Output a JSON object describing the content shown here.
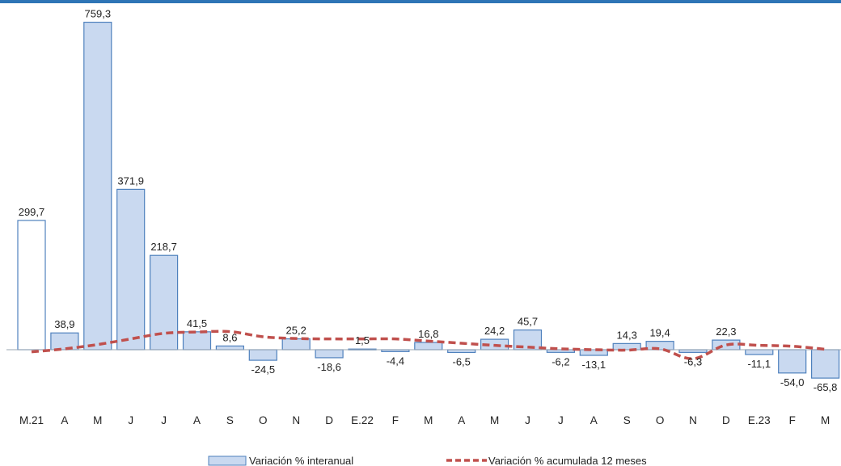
{
  "chart_data": {
    "type": "bar",
    "categories": [
      "M.21",
      "A",
      "M",
      "J",
      "J",
      "A",
      "S",
      "O",
      "N",
      "D",
      "E.22",
      "F",
      "M",
      "A",
      "M",
      "J",
      "J",
      "A",
      "S",
      "O",
      "N",
      "D",
      "E.23",
      "F",
      "M"
    ],
    "series": [
      {
        "name": "Variación % interanual",
        "type": "bar",
        "values": [
          299.7,
          38.9,
          759.3,
          371.9,
          218.7,
          41.5,
          8.6,
          -24.5,
          25.2,
          -18.6,
          1.5,
          -4.4,
          16.8,
          -6.5,
          24.2,
          45.7,
          -6.2,
          -13.1,
          14.3,
          19.4,
          -6.3,
          22.3,
          -11.1,
          -54.0,
          -65.8
        ],
        "value_labels": [
          "299,7",
          "38,9",
          "759,3",
          "371,9",
          "218,7",
          "41,5",
          "8,6",
          "-24,5",
          "25,2",
          "-18,6",
          "1,5",
          "-4,4",
          "16,8",
          "-6,5",
          "24,2",
          "45,7",
          "-6,2",
          "-13,1",
          "14,3",
          "19,4",
          "-6,3",
          "22,3",
          "-11,1",
          "-54,0",
          "-65,8"
        ]
      },
      {
        "name": "Variación % acumulada 12 meses",
        "type": "line",
        "values": [
          -5,
          2,
          12,
          25,
          38,
          41,
          42,
          30,
          26,
          25,
          25,
          25,
          20,
          15,
          10,
          6,
          2,
          0,
          -1,
          2,
          -21,
          11,
          10,
          8,
          1
        ]
      }
    ],
    "ylim": [
      -120,
      780
    ],
    "grid": false,
    "legend": "bottom",
    "colors": {
      "bar_fill": "#c9d9f0",
      "bar_stroke": "#4f81bd",
      "first_bar_fill": "#ffffff",
      "line": "#c0504d",
      "topbar": "#2e75b6"
    }
  }
}
